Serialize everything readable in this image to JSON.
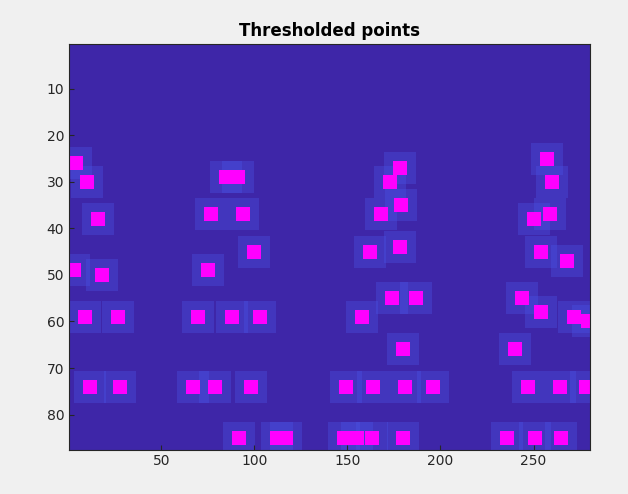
{
  "chart_data": {
    "type": "scatter",
    "title": "Thresholded points",
    "x": [
      4,
      10,
      16,
      3,
      18,
      9,
      27,
      12,
      28,
      67,
      79,
      98,
      70,
      88,
      103,
      75,
      100,
      77,
      94,
      85,
      91,
      92,
      112,
      117,
      149,
      164,
      181,
      196,
      180,
      158,
      174,
      187,
      162,
      178,
      168,
      179,
      173,
      178,
      148,
      155,
      163,
      180,
      240,
      244,
      254,
      254,
      259,
      250,
      260,
      257,
      268,
      272,
      264,
      278,
      279,
      236,
      251,
      265,
      247
    ],
    "y": [
      26,
      30,
      38,
      49,
      50,
      59,
      59,
      74,
      74,
      74,
      74,
      74,
      59,
      59,
      59,
      49,
      45,
      37,
      37,
      29,
      29,
      85,
      85,
      85,
      74,
      74,
      74,
      74,
      66,
      59,
      55,
      55,
      45,
      44,
      37,
      35,
      30,
      27,
      85,
      85,
      85,
      85,
      66,
      55,
      58,
      45,
      37,
      38,
      30,
      25,
      47,
      59,
      74,
      74,
      60,
      85,
      85,
      85,
      74
    ],
    "color": "#ff00ff",
    "marker": "s",
    "xlim": [
      0.5,
      280.5
    ],
    "ylim": [
      87.5,
      0.5
    ],
    "xticks": [
      50,
      100,
      150,
      200,
      250
    ],
    "yticks": [
      10,
      20,
      30,
      40,
      50,
      60,
      70,
      80
    ],
    "grid": false
  }
}
